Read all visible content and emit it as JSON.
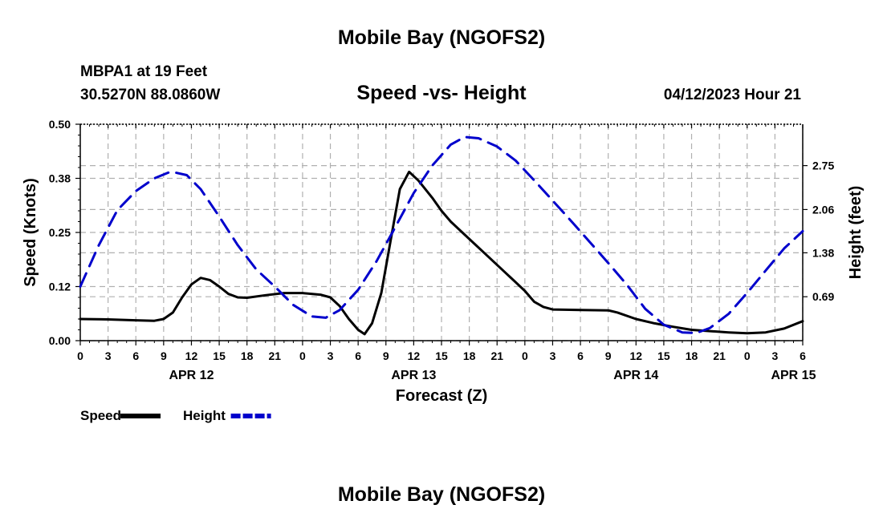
{
  "chart_data": {
    "type": "line",
    "title": "Mobile Bay (NGOFS2)",
    "subtitle": "Speed -vs- Height",
    "station": "MBPA1 at 19 Feet",
    "coords": "30.5270N  88.0860W",
    "run_time": "04/12/2023 Hour 21",
    "footer_title": "Mobile Bay (NGOFS2)",
    "xlabel": "Forecast (Z)",
    "ylabel_left": "Speed (Knots)",
    "ylabel_right": "Height (feet)",
    "x_range_hours": [
      0,
      78
    ],
    "x_ticks": [
      {
        "h": 0,
        "label": "0"
      },
      {
        "h": 3,
        "label": "3"
      },
      {
        "h": 6,
        "label": "6"
      },
      {
        "h": 9,
        "label": "9"
      },
      {
        "h": 12,
        "label": "12"
      },
      {
        "h": 15,
        "label": "15"
      },
      {
        "h": 18,
        "label": "18"
      },
      {
        "h": 21,
        "label": "21"
      },
      {
        "h": 24,
        "label": "0"
      },
      {
        "h": 27,
        "label": "3"
      },
      {
        "h": 30,
        "label": "6"
      },
      {
        "h": 33,
        "label": "9"
      },
      {
        "h": 36,
        "label": "12"
      },
      {
        "h": 39,
        "label": "15"
      },
      {
        "h": 42,
        "label": "18"
      },
      {
        "h": 45,
        "label": "21"
      },
      {
        "h": 48,
        "label": "0"
      },
      {
        "h": 51,
        "label": "3"
      },
      {
        "h": 54,
        "label": "6"
      },
      {
        "h": 57,
        "label": "9"
      },
      {
        "h": 60,
        "label": "12"
      },
      {
        "h": 63,
        "label": "15"
      },
      {
        "h": 66,
        "label": "18"
      },
      {
        "h": 69,
        "label": "21"
      },
      {
        "h": 72,
        "label": "0"
      },
      {
        "h": 75,
        "label": "3"
      },
      {
        "h": 78,
        "label": "6"
      }
    ],
    "date_labels": [
      {
        "h": 12,
        "label": "APR 12"
      },
      {
        "h": 36,
        "label": "APR 13"
      },
      {
        "h": 60,
        "label": "APR 14"
      },
      {
        "h": 77,
        "label": "APR 15"
      }
    ],
    "ylim_left": [
      0,
      0.5
    ],
    "yticks_left": [
      {
        "v": 0.0,
        "label": "0.00"
      },
      {
        "v": 0.125,
        "label": "0.12"
      },
      {
        "v": 0.25,
        "label": "0.25"
      },
      {
        "v": 0.375,
        "label": "0.38"
      },
      {
        "v": 0.5,
        "label": "0.50"
      }
    ],
    "ylim_right": [
      0.0,
      3.4
    ],
    "yticks_right": [
      {
        "v": 0.69,
        "label": "0.69"
      },
      {
        "v": 1.38,
        "label": "1.38"
      },
      {
        "v": 2.06,
        "label": "2.06"
      },
      {
        "v": 2.75,
        "label": "2.75"
      }
    ],
    "series": [
      {
        "name": "Speed",
        "axis": "left",
        "color": "#000000",
        "dash": "solid",
        "points": [
          [
            0,
            0.05
          ],
          [
            3,
            0.049
          ],
          [
            6,
            0.047
          ],
          [
            8,
            0.046
          ],
          [
            9,
            0.05
          ],
          [
            10,
            0.065
          ],
          [
            11,
            0.1
          ],
          [
            12,
            0.13
          ],
          [
            13,
            0.145
          ],
          [
            14,
            0.14
          ],
          [
            15,
            0.125
          ],
          [
            16,
            0.108
          ],
          [
            17,
            0.1
          ],
          [
            18,
            0.099
          ],
          [
            20,
            0.105
          ],
          [
            22,
            0.11
          ],
          [
            24,
            0.11
          ],
          [
            26,
            0.106
          ],
          [
            27,
            0.1
          ],
          [
            28,
            0.08
          ],
          [
            29,
            0.05
          ],
          [
            30,
            0.025
          ],
          [
            30.7,
            0.015
          ],
          [
            31.5,
            0.04
          ],
          [
            32.5,
            0.11
          ],
          [
            33.5,
            0.23
          ],
          [
            34.5,
            0.35
          ],
          [
            35.5,
            0.39
          ],
          [
            36.5,
            0.37
          ],
          [
            38,
            0.33
          ],
          [
            39,
            0.3
          ],
          [
            40,
            0.275
          ],
          [
            42,
            0.235
          ],
          [
            44,
            0.195
          ],
          [
            46,
            0.155
          ],
          [
            48,
            0.115
          ],
          [
            49,
            0.09
          ],
          [
            50,
            0.078
          ],
          [
            51,
            0.072
          ],
          [
            54,
            0.071
          ],
          [
            57,
            0.07
          ],
          [
            58,
            0.065
          ],
          [
            60,
            0.05
          ],
          [
            62,
            0.04
          ],
          [
            64,
            0.032
          ],
          [
            66,
            0.025
          ],
          [
            68,
            0.022
          ],
          [
            70,
            0.019
          ],
          [
            72,
            0.017
          ],
          [
            74,
            0.019
          ],
          [
            76,
            0.028
          ],
          [
            78,
            0.045
          ]
        ]
      },
      {
        "name": "Height",
        "axis": "right",
        "color": "#0000cc",
        "dash": "dashed",
        "points": [
          [
            0,
            0.85
          ],
          [
            2,
            1.5
          ],
          [
            4,
            2.05
          ],
          [
            6,
            2.35
          ],
          [
            8,
            2.55
          ],
          [
            9.5,
            2.64
          ],
          [
            10,
            2.65
          ],
          [
            11.5,
            2.6
          ],
          [
            13,
            2.38
          ],
          [
            15,
            1.95
          ],
          [
            17,
            1.5
          ],
          [
            19,
            1.12
          ],
          [
            21,
            0.85
          ],
          [
            23,
            0.56
          ],
          [
            25,
            0.38
          ],
          [
            26.5,
            0.36
          ],
          [
            28,
            0.48
          ],
          [
            30,
            0.8
          ],
          [
            32,
            1.25
          ],
          [
            34,
            1.78
          ],
          [
            36,
            2.32
          ],
          [
            38,
            2.75
          ],
          [
            40,
            3.08
          ],
          [
            41.5,
            3.2
          ],
          [
            43,
            3.18
          ],
          [
            45,
            3.05
          ],
          [
            47,
            2.83
          ],
          [
            49,
            2.52
          ],
          [
            51,
            2.2
          ],
          [
            53,
            1.88
          ],
          [
            55,
            1.55
          ],
          [
            57,
            1.22
          ],
          [
            59,
            0.88
          ],
          [
            61,
            0.5
          ],
          [
            63,
            0.25
          ],
          [
            65,
            0.13
          ],
          [
            66.5,
            0.12
          ],
          [
            68,
            0.2
          ],
          [
            70,
            0.42
          ],
          [
            72,
            0.75
          ],
          [
            74,
            1.1
          ],
          [
            76,
            1.45
          ],
          [
            78,
            1.72
          ]
        ]
      }
    ],
    "legend": [
      {
        "name": "Speed",
        "color": "#000000",
        "dash": "solid"
      },
      {
        "name": "Height",
        "color": "#0000cc",
        "dash": "dashed"
      }
    ]
  }
}
